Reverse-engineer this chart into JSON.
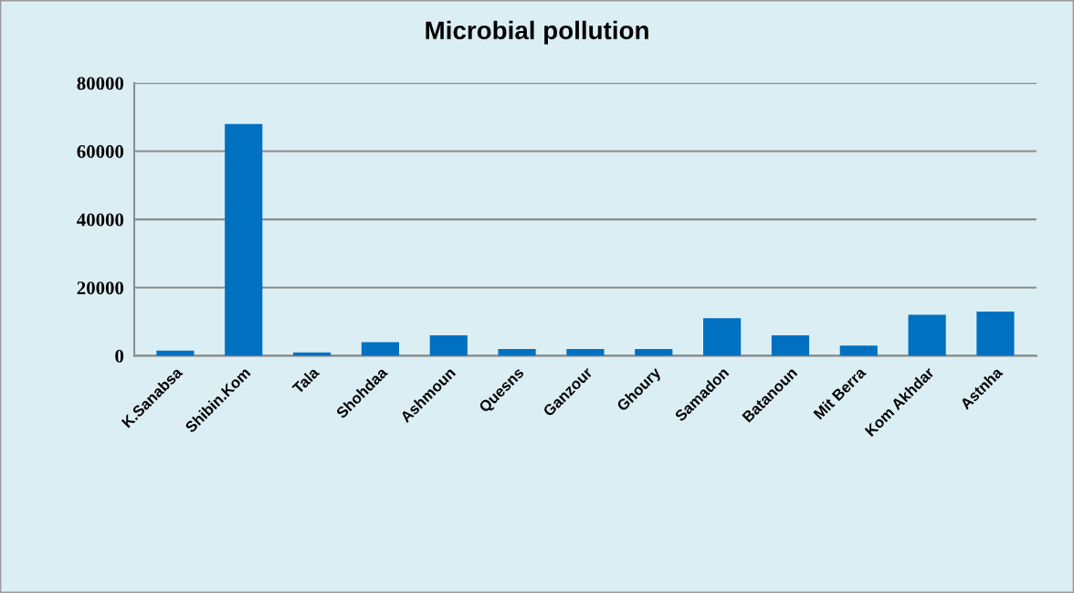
{
  "chart_data": {
    "type": "bar",
    "title": "Microbial pollution",
    "categories": [
      "K.Sanabsa",
      "Shibin.Kom",
      "Tala",
      "Shohdaa",
      "Ashmoun",
      "Quesns",
      "Ganzour",
      "Ghoury",
      "Samadon",
      "Batanoun",
      "Mit Berra",
      "Kom Akhdar",
      "Astnha"
    ],
    "values": [
      1500,
      68000,
      1000,
      4000,
      6000,
      2000,
      2000,
      2000,
      11000,
      6000,
      3000,
      12000,
      13000
    ],
    "color": "#0070c0",
    "ylim": [
      0,
      80000
    ],
    "yticks": [
      0,
      20000,
      40000,
      60000,
      80000
    ],
    "grid": "y"
  }
}
